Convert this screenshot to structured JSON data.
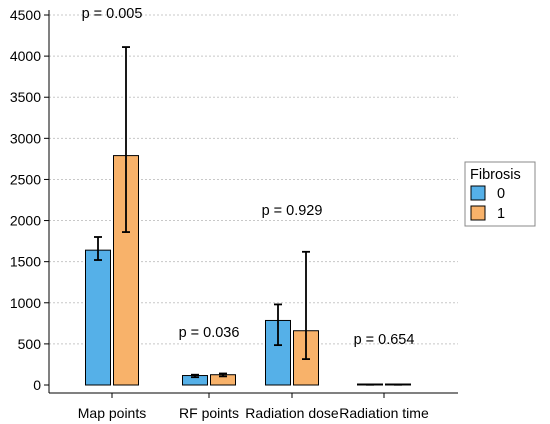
{
  "chart_data": {
    "type": "bar",
    "categories": [
      "Map points",
      "RF points",
      "Radiation dose",
      "Radiation time"
    ],
    "series": [
      {
        "name": "0",
        "color": "#55b0e8",
        "values": [
          1640,
          115,
          785,
          5
        ],
        "error_low": [
          1520,
          95,
          485,
          3
        ],
        "error_high": [
          1800,
          125,
          980,
          7
        ]
      },
      {
        "name": "1",
        "color": "#f8b26a",
        "values": [
          2790,
          125,
          660,
          5
        ],
        "error_low": [
          1860,
          105,
          315,
          3
        ],
        "error_high": [
          4110,
          140,
          1620,
          7
        ]
      }
    ],
    "p_values": [
      "p = 0.005",
      "p = 0.036",
      "p = 0.929",
      "p = 0.654"
    ],
    "yticks": [
      "0",
      "500",
      "1000",
      "1500",
      "2000",
      "2500",
      "3000",
      "3500",
      "4000",
      "4500"
    ],
    "ylim": [
      0,
      4500
    ],
    "xlabel": "",
    "ylabel": "",
    "grid": true,
    "legend": {
      "title": "Fibrosis",
      "position": "right"
    },
    "error_bars": true
  }
}
